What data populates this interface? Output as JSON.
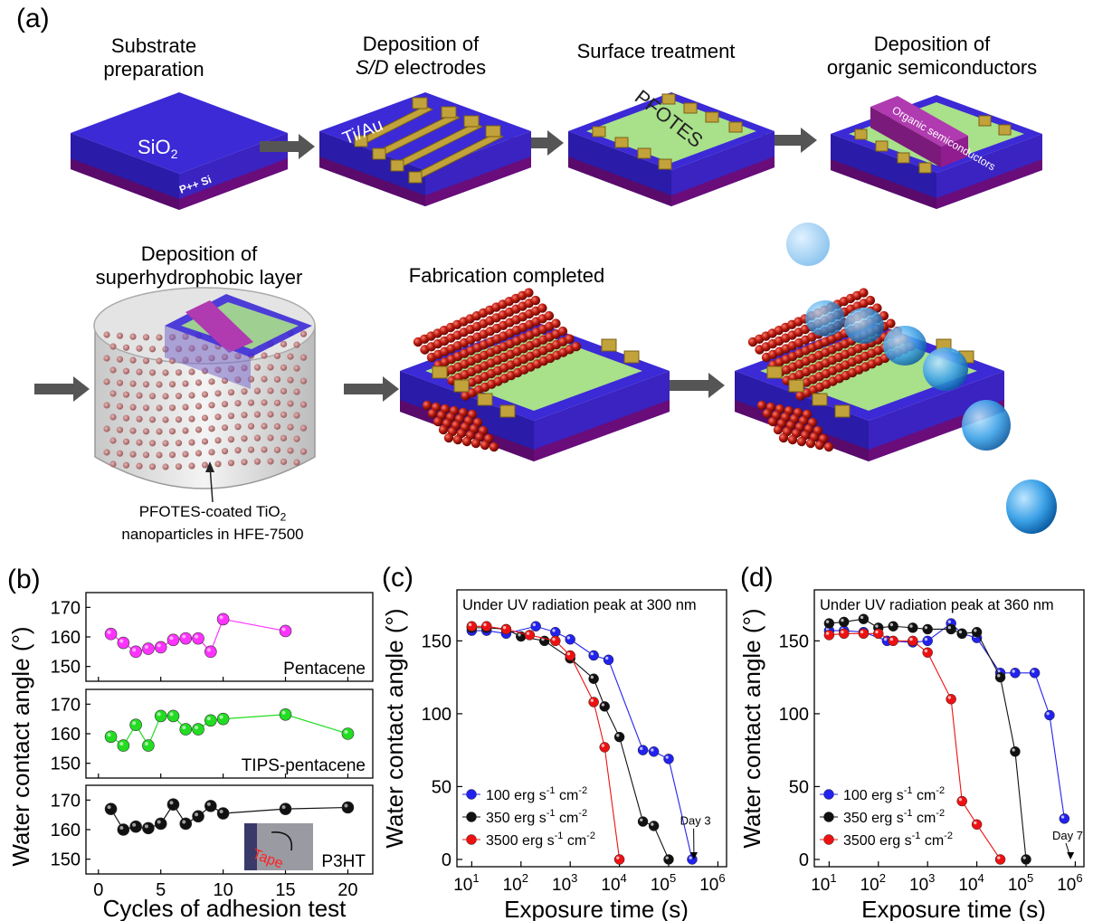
{
  "panel_a": {
    "letter": "(a)",
    "steps": [
      {
        "line1": "Substrate",
        "line2": "preparation"
      },
      {
        "line1": "Deposition of",
        "line2_pre": "",
        "line2_it": "S/D",
        "line2_post": " electrodes"
      },
      {
        "line1": "Surface treatment",
        "line2": ""
      },
      {
        "line1": "Deposition of",
        "line2": "organic semiconductors"
      },
      {
        "line1": "Deposition of",
        "line2": "superhydrophobic layer"
      },
      {
        "line1": "Fabrication completed",
        "line2": ""
      }
    ],
    "device_labels": {
      "sio2_main": "SiO",
      "sio2_sub": "2",
      "pps": "P++ Si",
      "tiau": "Ti/Au",
      "pfotes": "PFOTES",
      "organic": "Organic semiconductors"
    },
    "annotation_line1_pre": "PFOTES-coated TiO",
    "annotation_line1_sub": "2",
    "annotation_line2": "nanoparticles in HFE-7500"
  },
  "panel_b": {
    "letter": "(b)",
    "ylabel": "Water contact angle (°)",
    "xlabel": "Cycles of adhesion test",
    "inset_label": "Tape",
    "chart_data": [
      {
        "type": "line",
        "name": "Pentacene",
        "color": "#ff33ff",
        "x": [
          1,
          2,
          3,
          4,
          5,
          6,
          7,
          8,
          9,
          10,
          15
        ],
        "y": [
          161,
          158,
          155,
          156,
          156.5,
          159,
          159.5,
          159.5,
          155,
          166,
          162
        ],
        "ylim": [
          145,
          175
        ],
        "yticks": [
          150,
          160,
          170
        ]
      },
      {
        "type": "line",
        "name": "TIPS-pentacene",
        "color": "#22dd22",
        "x": [
          1,
          2,
          3,
          4,
          5,
          6,
          7,
          8,
          9,
          10,
          15,
          20
        ],
        "y": [
          159,
          156,
          163,
          156,
          166,
          166,
          161.5,
          161.5,
          164.5,
          165,
          166.5,
          160
        ],
        "ylim": [
          145,
          175
        ],
        "yticks": [
          150,
          160,
          170
        ]
      },
      {
        "type": "line",
        "name": "P3HT",
        "color": "#111111",
        "x": [
          1,
          2,
          3,
          4,
          5,
          6,
          7,
          8,
          9,
          10,
          15,
          20
        ],
        "y": [
          167,
          160,
          161,
          160.5,
          162,
          168.5,
          162,
          164.5,
          168,
          165.5,
          167,
          167.5
        ],
        "ylim": [
          145,
          175
        ],
        "yticks": [
          150,
          160,
          170
        ],
        "xticks": [
          0,
          5,
          10,
          15,
          20
        ]
      }
    ]
  },
  "panel_c": {
    "letter": "(c)",
    "chart_data": {
      "type": "line",
      "title": "Under UV radiation peak at 300 nm",
      "xlabel": "Exposure time (s)",
      "ylabel": "Water contact angle (°)",
      "xscale": "log",
      "xlim": [
        5,
        1500000
      ],
      "ylim": [
        -5,
        185
      ],
      "yticks": [
        0,
        50,
        100,
        150
      ],
      "xticks": [
        "10",
        "10",
        "10",
        "10",
        "10",
        "10"
      ],
      "xtick_exp": [
        "1",
        "2",
        "3",
        "4",
        "5",
        "6"
      ],
      "annotation": "Day 3",
      "series": [
        {
          "name": "100 erg s",
          "name_sup1": "-1",
          "name_mid": " cm",
          "name_sup2": "-2",
          "color": "#2222ee",
          "x": [
            10,
            20,
            50,
            200,
            500,
            1000,
            3000,
            6000,
            30000,
            50000,
            100000,
            300000
          ],
          "y": [
            157,
            157,
            155,
            160,
            156,
            151,
            140,
            137,
            75,
            74,
            69,
            0
          ]
        },
        {
          "name": "350 erg s",
          "name_sup1": "-1",
          "name_mid": " cm",
          "name_sup2": "-2",
          "color": "#111111",
          "x": [
            10,
            20,
            50,
            100,
            300,
            1000,
            3000,
            5000,
            10000,
            30000,
            50000,
            100000
          ],
          "y": [
            159,
            159,
            158,
            153,
            150,
            138,
            124,
            105,
            84,
            26,
            23,
            0
          ]
        },
        {
          "name": "3500 erg s",
          "name_sup1": "-1",
          "name_mid": " cm",
          "name_sup2": "-2",
          "color": "#ee1111",
          "x": [
            10,
            20,
            50,
            150,
            500,
            1000,
            3000,
            5000,
            10000
          ],
          "y": [
            160,
            160,
            158,
            154,
            150,
            140,
            108,
            77,
            0
          ]
        }
      ]
    }
  },
  "panel_d": {
    "letter": "(d)",
    "chart_data": {
      "type": "line",
      "title": "Under UV radiation peak at 360 nm",
      "xlabel": "Exposure time (s)",
      "ylabel": "Water contact angle (°)",
      "xscale": "log",
      "xlim": [
        5,
        1500000
      ],
      "ylim": [
        -5,
        185
      ],
      "yticks": [
        0,
        50,
        100,
        150
      ],
      "xticks": [
        "10",
        "10",
        "10",
        "10",
        "10",
        "10"
      ],
      "xtick_exp": [
        "1",
        "2",
        "3",
        "4",
        "5",
        "6"
      ],
      "annotation": "Day 7",
      "series": [
        {
          "name": "100 erg s",
          "name_sup1": "-1",
          "name_mid": " cm",
          "name_sup2": "-2",
          "color": "#2222ee",
          "x": [
            10,
            20,
            50,
            150,
            500,
            1000,
            3000,
            5000,
            10000,
            30000,
            60000,
            150000,
            300000,
            600000
          ],
          "y": [
            157,
            157,
            156,
            150,
            149,
            150,
            162,
            155,
            152,
            128,
            128,
            128,
            99,
            28
          ]
        },
        {
          "name": "350 erg s",
          "name_sup1": "-1",
          "name_mid": " cm",
          "name_sup2": "-2",
          "color": "#111111",
          "x": [
            10,
            20,
            50,
            100,
            200,
            500,
            1000,
            3000,
            5000,
            10000,
            30000,
            60000,
            100000
          ],
          "y": [
            162,
            163,
            165,
            159,
            160,
            159,
            158,
            158,
            155,
            156,
            125,
            74,
            0
          ]
        },
        {
          "name": "3500 erg s",
          "name_sup1": "-1",
          "name_mid": " cm",
          "name_sup2": "-2",
          "color": "#ee1111",
          "x": [
            10,
            20,
            50,
            100,
            200,
            500,
            1000,
            3000,
            5000,
            10000,
            30000
          ],
          "y": [
            154,
            155,
            155,
            155,
            150,
            150,
            142,
            110,
            40,
            24,
            0
          ]
        }
      ]
    }
  }
}
